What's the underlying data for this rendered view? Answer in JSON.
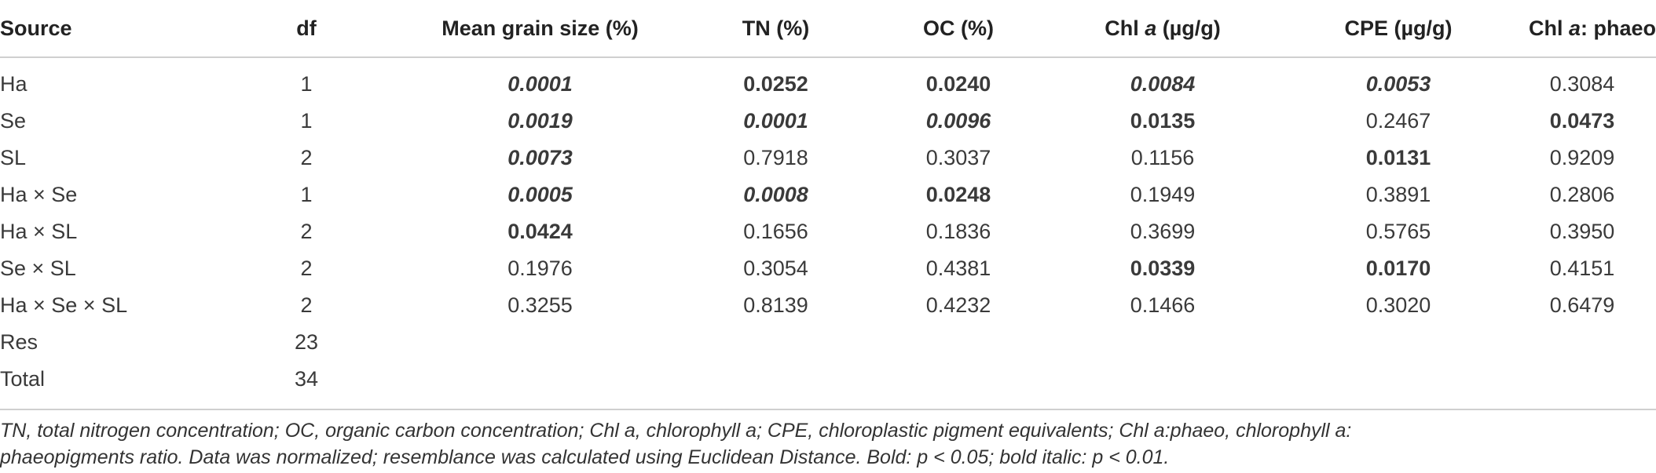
{
  "table": {
    "headers": {
      "source": "Source",
      "df": "df",
      "grain": "Mean grain size (%)",
      "tn": "TN (%)",
      "oc": "OC (%)",
      "chl_pre": "Chl ",
      "chl_a": "a",
      "chl_post": " (µg/g)",
      "cpe": "CPE (µg/g)",
      "ratio_pre": "Chl ",
      "ratio_a": "a",
      "ratio_post": ": phaeo"
    },
    "rows": [
      {
        "source": "Ha",
        "df": "1",
        "grain": "0.0001",
        "tn": "0.0252",
        "oc": "0.0240",
        "chl": "0.0084",
        "cpe": "0.0053",
        "ratio": "0.3084"
      },
      {
        "source": "Se",
        "df": "1",
        "grain": "0.0019",
        "tn": "0.0001",
        "oc": "0.0096",
        "chl": "0.0135",
        "cpe": "0.2467",
        "ratio": "0.0473"
      },
      {
        "source": "SL",
        "df": "2",
        "grain": "0.0073",
        "tn": "0.7918",
        "oc": "0.3037",
        "chl": "0.1156",
        "cpe": "0.0131",
        "ratio": "0.9209"
      },
      {
        "source": "Ha × Se",
        "df": "1",
        "grain": "0.0005",
        "tn": "0.0008",
        "oc": "0.0248",
        "chl": "0.1949",
        "cpe": "0.3891",
        "ratio": "0.2806"
      },
      {
        "source": "Ha × SL",
        "df": "2",
        "grain": "0.0424",
        "tn": "0.1656",
        "oc": "0.1836",
        "chl": "0.3699",
        "cpe": "0.5765",
        "ratio": "0.3950"
      },
      {
        "source": "Se × SL",
        "df": "2",
        "grain": "0.1976",
        "tn": "0.3054",
        "oc": "0.4381",
        "chl": "0.0339",
        "cpe": "0.0170",
        "ratio": "0.4151"
      },
      {
        "source": "Ha × Se × SL",
        "df": "2",
        "grain": "0.3255",
        "tn": "0.8139",
        "oc": "0.4232",
        "chl": "0.1466",
        "cpe": "0.3020",
        "ratio": "0.6479"
      },
      {
        "source": "Res",
        "df": "23",
        "grain": "",
        "tn": "",
        "oc": "",
        "chl": "",
        "cpe": "",
        "ratio": ""
      },
      {
        "source": "Total",
        "df": "34",
        "grain": "",
        "tn": "",
        "oc": "",
        "chl": "",
        "cpe": "",
        "ratio": ""
      }
    ]
  },
  "footnote": {
    "line1": "TN, total nitrogen concentration; OC, organic carbon concentration; Chl a, chlorophyll a; CPE, chloroplastic pigment equivalents; Chl a:phaeo, chlorophyll a:",
    "line2": "phaeopigments ratio. Data was normalized; resemblance was calculated using Euclidean Distance. Bold: p < 0.05; bold italic: p < 0.01."
  }
}
